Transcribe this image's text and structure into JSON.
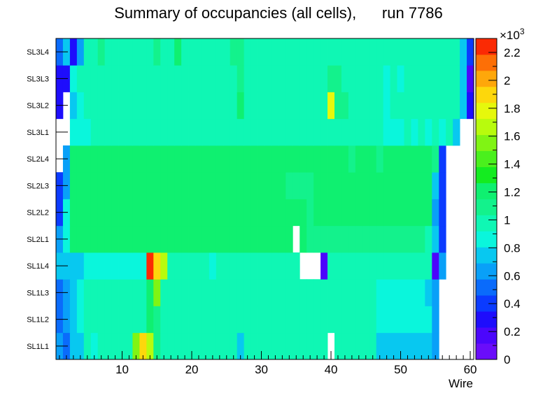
{
  "chart_data": {
    "type": "heatmap",
    "title": "Summary of occupancies (all cells),      run 7786",
    "xlabel": "Wire",
    "ylabel": "",
    "xlim": [
      0.5,
      60.5
    ],
    "x_ticks": [
      "10",
      "20",
      "30",
      "40",
      "50",
      "60"
    ],
    "y_categories": [
      "SL1L1",
      "SL1L2",
      "SL1L3",
      "SL1L4",
      "SL2L1",
      "SL2L2",
      "SL2L3",
      "SL2L4",
      "SL3L1",
      "SL3L2",
      "SL3L3",
      "SL3L4"
    ],
    "z_range": [
      0,
      2300
    ],
    "colorbar_exponent": "×10",
    "colorbar_exponent_power": "3",
    "colorbar_ticks": [
      {
        "value": 0,
        "label": "0"
      },
      {
        "value": 200,
        "label": "0.2"
      },
      {
        "value": 400,
        "label": "0.4"
      },
      {
        "value": 600,
        "label": "0.6"
      },
      {
        "value": 800,
        "label": "0.8"
      },
      {
        "value": 1000,
        "label": "1"
      },
      {
        "value": 1200,
        "label": "1.2"
      },
      {
        "value": 1400,
        "label": "1.4"
      },
      {
        "value": 1600,
        "label": "1.6"
      },
      {
        "value": 1800,
        "label": "1.8"
      },
      {
        "value": 2000,
        "label": "2"
      },
      {
        "value": 2200,
        "label": "2.2"
      }
    ],
    "palette": [
      "#6a0dfa",
      "#4b06fc",
      "#1e0dfc",
      "#0b3bff",
      "#0a6bfb",
      "#09a0f8",
      "#08c8f0",
      "#0af6dc",
      "#0ff7b4",
      "#13f28c",
      "#0ff070",
      "#14ec20",
      "#4af01d",
      "#80f414",
      "#b8fb0d",
      "#e6f80c",
      "#fdd70c",
      "#fea70a",
      "#fd6f06",
      "#fb2a04"
    ],
    "rows": {
      "SL1L1": [
        600,
        500,
        800,
        800,
        1000,
        900,
        1000,
        1000,
        1000,
        1000,
        1000,
        1500,
        1850,
        1650,
        1100,
        1000,
        1000,
        1000,
        1000,
        1000,
        1000,
        1000,
        1000,
        1000,
        1000,
        1000,
        800,
        1000,
        1000,
        1000,
        1000,
        1000,
        1000,
        1000,
        1000,
        1000,
        1000,
        1000,
        1000,
        null,
        1000,
        1000,
        1000,
        1000,
        1000,
        1000,
        800,
        800,
        800,
        800,
        800,
        800,
        800,
        700,
        600,
        null,
        null,
        null,
        null,
        null
      ],
      "SL1L2": [
        500,
        600,
        750,
        850,
        950,
        1000,
        1000,
        1000,
        1000,
        1000,
        1000,
        1000,
        1000,
        1150,
        1100,
        1000,
        1000,
        1000,
        1000,
        1000,
        1000,
        1000,
        1000,
        1000,
        1000,
        1000,
        1000,
        1000,
        1000,
        1000,
        1000,
        1000,
        1000,
        1000,
        1000,
        1000,
        1000,
        1000,
        1000,
        1000,
        1000,
        1000,
        1000,
        1000,
        1000,
        1000,
        900,
        900,
        900,
        900,
        900,
        900,
        900,
        900,
        600,
        null,
        null,
        null,
        null,
        null
      ],
      "SL1L3": [
        500,
        600,
        750,
        850,
        950,
        1000,
        1000,
        1000,
        1000,
        1000,
        1000,
        1000,
        1000,
        1250,
        1550,
        1000,
        1000,
        1000,
        1000,
        1000,
        1000,
        950,
        1000,
        1000,
        1000,
        1000,
        1000,
        1000,
        1000,
        1000,
        1000,
        1000,
        1000,
        1000,
        1000,
        1000,
        1000,
        1000,
        1000,
        1000,
        1000,
        1000,
        1000,
        1000,
        1000,
        1000,
        900,
        900,
        900,
        900,
        900,
        900,
        900,
        700,
        600,
        null,
        null,
        null,
        null,
        null
      ],
      "SL1L4": [
        700,
        800,
        800,
        800,
        900,
        850,
        850,
        850,
        900,
        850,
        850,
        900,
        850,
        2300,
        1900,
        1700,
        1000,
        1000,
        1000,
        1000,
        1000,
        1000,
        900,
        950,
        950,
        950,
        1000,
        1000,
        1000,
        1000,
        1000,
        1000,
        1000,
        1000,
        1000,
        null,
        null,
        null,
        200,
        950,
        950,
        950,
        950,
        950,
        950,
        950,
        950,
        950,
        950,
        950,
        950,
        950,
        950,
        950,
        150,
        600,
        null,
        null,
        null,
        null
      ],
      "SL2L1": [
        600,
        900,
        1150,
        1150,
        1150,
        1150,
        1150,
        1150,
        1150,
        1150,
        1150,
        1250,
        1250,
        1250,
        1150,
        1150,
        1150,
        1150,
        1150,
        1150,
        1150,
        1150,
        1150,
        1150,
        1150,
        1150,
        1150,
        1150,
        1150,
        1150,
        1150,
        1150,
        1150,
        1150,
        null,
        1150,
        1050,
        1050,
        1050,
        1050,
        1050,
        1050,
        1050,
        1050,
        1050,
        1050,
        1050,
        1050,
        1050,
        1050,
        1050,
        1050,
        1050,
        1000,
        800,
        350,
        null,
        null,
        null,
        null
      ],
      "SL2L2": [
        400,
        900,
        1150,
        1150,
        1150,
        1200,
        1150,
        1150,
        1150,
        1150,
        1150,
        1150,
        1200,
        1200,
        1150,
        1150,
        1150,
        1150,
        1150,
        1150,
        1200,
        1150,
        1150,
        1150,
        1150,
        1150,
        1150,
        1150,
        1150,
        1150,
        1150,
        1150,
        1150,
        1150,
        1150,
        1150,
        1100,
        1150,
        1150,
        1150,
        1150,
        1150,
        1150,
        1150,
        1150,
        1150,
        1150,
        1150,
        1150,
        1150,
        1150,
        1150,
        1150,
        1150,
        600,
        350,
        null,
        null,
        null,
        null
      ],
      "SL2L3": [
        350,
        650,
        1150,
        1150,
        1150,
        1150,
        1150,
        1150,
        1150,
        1150,
        1150,
        1150,
        1150,
        1150,
        1150,
        1150,
        1150,
        1150,
        1150,
        1150,
        1150,
        1150,
        1150,
        1150,
        1150,
        1150,
        1150,
        1150,
        1150,
        1150,
        1150,
        1150,
        1150,
        1100,
        1100,
        1100,
        1100,
        1150,
        1150,
        1150,
        1150,
        1150,
        1150,
        1150,
        1150,
        1150,
        1150,
        1150,
        1150,
        1150,
        1150,
        1150,
        1150,
        1150,
        800,
        350,
        null,
        null,
        null,
        null
      ],
      "SL2L4": [
        null,
        600,
        1150,
        1150,
        1150,
        1150,
        1150,
        1150,
        1150,
        1150,
        1150,
        1150,
        1250,
        1150,
        1150,
        1150,
        1150,
        1150,
        1150,
        1150,
        1150,
        1150,
        1150,
        1150,
        1150,
        1150,
        1150,
        1150,
        1150,
        1150,
        1150,
        1150,
        1150,
        1150,
        1150,
        1150,
        1150,
        1150,
        1150,
        1150,
        1150,
        1150,
        1100,
        1150,
        1150,
        1150,
        1100,
        1150,
        1150,
        1150,
        1150,
        1150,
        1150,
        1150,
        1100,
        350,
        null,
        null,
        null,
        null
      ],
      "SL3L1": [
        null,
        null,
        900,
        900,
        900,
        950,
        950,
        950,
        1000,
        1000,
        1000,
        1000,
        1000,
        1000,
        1000,
        1000,
        1000,
        1000,
        1000,
        1000,
        1000,
        1000,
        1000,
        1000,
        1000,
        1000,
        1000,
        1000,
        1000,
        1000,
        1000,
        1000,
        1000,
        1000,
        1000,
        1000,
        1000,
        1000,
        1000,
        1000,
        1000,
        1000,
        1000,
        1000,
        1000,
        1000,
        1000,
        900,
        900,
        900,
        950,
        900,
        950,
        900,
        1000,
        900,
        950,
        800,
        null,
        null
      ],
      "SL3L2": [
        300,
        null,
        700,
        900,
        1000,
        1000,
        1000,
        1000,
        1000,
        1000,
        1000,
        1000,
        1000,
        1000,
        1000,
        1000,
        1000,
        1000,
        1000,
        1000,
        1000,
        1000,
        1000,
        1000,
        1000,
        1000,
        1150,
        1000,
        1000,
        1000,
        1000,
        1000,
        950,
        950,
        1000,
        1000,
        1000,
        1000,
        1000,
        1800,
        1100,
        1050,
        1000,
        950,
        1000,
        1000,
        1000,
        900,
        950,
        950,
        950,
        1000,
        950,
        1000,
        950,
        950,
        1000,
        950,
        800,
        300
      ],
      "SL3L3": [
        300,
        300,
        850,
        1000,
        1000,
        1000,
        1000,
        1000,
        1000,
        1000,
        1000,
        1000,
        1000,
        1000,
        1000,
        1000,
        1000,
        1000,
        1000,
        1000,
        1000,
        1000,
        1000,
        1000,
        1000,
        1000,
        1100,
        1000,
        1000,
        1000,
        1000,
        1000,
        950,
        950,
        1000,
        1000,
        1000,
        1000,
        1000,
        1050,
        1050,
        1000,
        1000,
        1000,
        1000,
        1000,
        1000,
        900,
        1000,
        900,
        1000,
        950,
        950,
        950,
        950,
        950,
        950,
        950,
        800,
        200
      ],
      "SL3L4": [
        500,
        700,
        300,
        600,
        1000,
        1000,
        1050,
        1000,
        1000,
        1000,
        1000,
        1000,
        1000,
        1000,
        1050,
        1000,
        1000,
        1150,
        1000,
        1000,
        1000,
        1000,
        1000,
        1000,
        1000,
        1100,
        1100,
        1000,
        1000,
        1000,
        1000,
        1000,
        1000,
        1000,
        1000,
        1000,
        1000,
        1000,
        1000,
        1000,
        1000,
        1000,
        1000,
        1000,
        1000,
        1000,
        1000,
        1000,
        1000,
        1000,
        1000,
        1000,
        1000,
        1000,
        1000,
        1000,
        1000,
        1000,
        800,
        350
      ]
    }
  }
}
